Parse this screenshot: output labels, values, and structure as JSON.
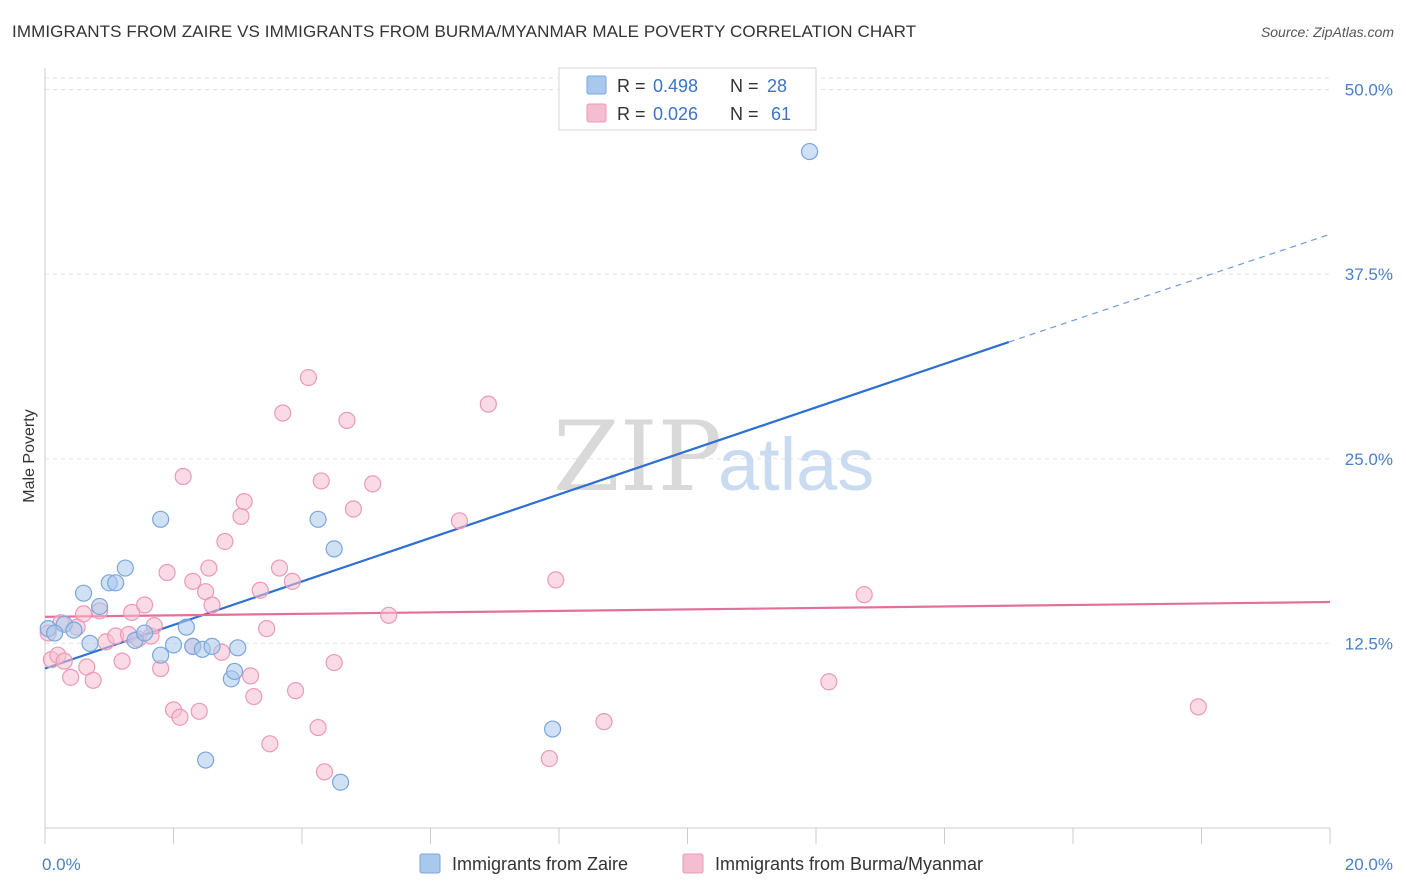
{
  "title": "IMMIGRANTS FROM ZAIRE VS IMMIGRANTS FROM BURMA/MYANMAR MALE POVERTY CORRELATION CHART",
  "source": "Source: ZipAtlas.com",
  "watermark": {
    "zip": "ZIP",
    "atlas": "atlas"
  },
  "legend_top": {
    "r_label": "R =",
    "n_label": "N =",
    "entries": [
      {
        "r": "0.498",
        "n": "28"
      },
      {
        "r": "0.026",
        "n": "61"
      }
    ]
  },
  "colors": {
    "zaire_fill": "#a9c8ee",
    "zaire_stroke": "#7aa6dc",
    "zaire_line": "#2e6fd1",
    "burma_fill": "#f5bdd0",
    "burma_stroke": "#eb9ab5",
    "burma_line": "#e3709a",
    "tick_label": "#4a7fc9",
    "grid": "#e3e3e3"
  },
  "chart_data": {
    "type": "scatter",
    "title": "IMMIGRANTS FROM ZAIRE VS IMMIGRANTS FROM BURMA/MYANMAR MALE POVERTY CORRELATION CHART",
    "xlabel": "",
    "ylabel": "Male Poverty",
    "xlim": [
      0,
      20
    ],
    "ylim": [
      0,
      52
    ],
    "x_tick_labels": [
      {
        "value": 0,
        "label": "0.0%"
      },
      {
        "value": 20,
        "label": "20.0%"
      }
    ],
    "y_tick_labels": [
      {
        "value": 12.5,
        "label": "12.5%"
      },
      {
        "value": 25,
        "label": "25.0%"
      },
      {
        "value": 37.5,
        "label": "37.5%"
      },
      {
        "value": 50,
        "label": "50.0%"
      }
    ],
    "grid": true,
    "legend_placement": "top-center",
    "series": [
      {
        "name": "Immigrants from Zaire",
        "r": 0.498,
        "n": 28,
        "trend": {
          "x0": 0,
          "y0": 10.8,
          "x1": 15.0,
          "y1": 32.9,
          "dashed_to_x": 20,
          "dashed_to_y": 40.2
        },
        "points": [
          [
            0.05,
            13.5
          ],
          [
            0.3,
            13.8
          ],
          [
            0.45,
            13.4
          ],
          [
            0.6,
            15.9
          ],
          [
            0.7,
            12.5
          ],
          [
            0.85,
            15.0
          ],
          [
            1.0,
            16.6
          ],
          [
            1.1,
            16.6
          ],
          [
            1.25,
            17.6
          ],
          [
            1.4,
            12.7
          ],
          [
            1.55,
            13.2
          ],
          [
            1.8,
            11.7
          ],
          [
            1.8,
            20.9
          ],
          [
            2.0,
            12.4
          ],
          [
            2.2,
            13.6
          ],
          [
            2.3,
            12.3
          ],
          [
            2.45,
            12.1
          ],
          [
            2.5,
            4.6
          ],
          [
            2.6,
            12.3
          ],
          [
            2.9,
            10.1
          ],
          [
            2.95,
            10.6
          ],
          [
            3.0,
            12.2
          ],
          [
            4.25,
            20.9
          ],
          [
            4.5,
            18.9
          ],
          [
            4.6,
            3.1
          ],
          [
            7.9,
            6.7
          ],
          [
            11.9,
            45.8
          ],
          [
            0.15,
            13.2
          ]
        ]
      },
      {
        "name": "Immigrants from Burma/Myanmar",
        "r": 0.026,
        "n": 61,
        "trend": {
          "x0": 0,
          "y0": 14.3,
          "x1": 20,
          "y1": 15.3
        },
        "points": [
          [
            0.05,
            13.2
          ],
          [
            0.1,
            11.4
          ],
          [
            0.2,
            11.7
          ],
          [
            0.3,
            11.3
          ],
          [
            0.4,
            10.2
          ],
          [
            0.5,
            13.6
          ],
          [
            0.6,
            14.5
          ],
          [
            0.65,
            10.9
          ],
          [
            0.75,
            10.0
          ],
          [
            0.85,
            14.7
          ],
          [
            0.95,
            12.6
          ],
          [
            1.1,
            13.0
          ],
          [
            1.2,
            11.3
          ],
          [
            1.3,
            13.1
          ],
          [
            1.35,
            14.6
          ],
          [
            1.45,
            12.8
          ],
          [
            1.55,
            15.1
          ],
          [
            1.65,
            13.0
          ],
          [
            1.7,
            13.7
          ],
          [
            1.8,
            10.8
          ],
          [
            1.9,
            17.3
          ],
          [
            2.0,
            8.0
          ],
          [
            2.1,
            7.5
          ],
          [
            2.15,
            23.8
          ],
          [
            2.3,
            12.3
          ],
          [
            2.3,
            16.7
          ],
          [
            2.4,
            7.9
          ],
          [
            2.5,
            16.0
          ],
          [
            2.55,
            17.6
          ],
          [
            2.6,
            15.1
          ],
          [
            2.75,
            11.9
          ],
          [
            2.8,
            19.4
          ],
          [
            3.05,
            21.1
          ],
          [
            3.1,
            22.1
          ],
          [
            3.2,
            10.3
          ],
          [
            3.25,
            8.9
          ],
          [
            3.35,
            16.1
          ],
          [
            3.45,
            13.5
          ],
          [
            3.5,
            5.7
          ],
          [
            3.65,
            17.6
          ],
          [
            3.7,
            28.1
          ],
          [
            3.85,
            16.7
          ],
          [
            3.9,
            9.3
          ],
          [
            4.1,
            30.5
          ],
          [
            4.25,
            6.8
          ],
          [
            4.3,
            23.5
          ],
          [
            4.35,
            3.8
          ],
          [
            4.5,
            11.2
          ],
          [
            4.7,
            27.6
          ],
          [
            4.8,
            21.6
          ],
          [
            5.1,
            23.3
          ],
          [
            5.35,
            14.4
          ],
          [
            6.45,
            20.8
          ],
          [
            6.9,
            28.7
          ],
          [
            7.85,
            4.7
          ],
          [
            7.95,
            16.8
          ],
          [
            8.7,
            7.2
          ],
          [
            12.2,
            9.9
          ],
          [
            12.75,
            15.8
          ],
          [
            17.95,
            8.2
          ],
          [
            0.25,
            13.9
          ]
        ]
      }
    ]
  },
  "bottom_legend": [
    "Immigrants from Zaire",
    "Immigrants from Burma/Myanmar"
  ]
}
